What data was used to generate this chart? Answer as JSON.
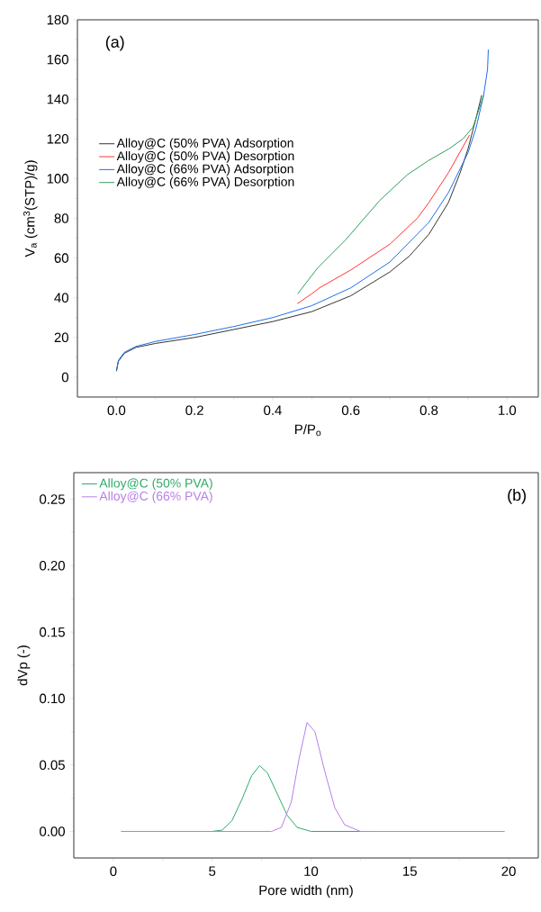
{
  "chart_data": [
    {
      "type": "line",
      "xlabel": "P/P$_{o}$",
      "ylabel": "V$_{a}$ (cm$^{3}$(STP)/g)",
      "annotations": [
        "(a)"
      ],
      "legend": "left",
      "xlim": [
        -0.1,
        1.08
      ],
      "ylim": [
        -10,
        180
      ],
      "xticks": [
        {
          "value": 0,
          "label": "0.0"
        },
        {
          "value": 0.2,
          "label": "0.2"
        },
        {
          "value": 0.4,
          "label": "0.4"
        },
        {
          "value": 0.6,
          "label": "0.6"
        },
        {
          "value": 0.8,
          "label": "0.8"
        },
        {
          "value": 1,
          "label": "1.0"
        }
      ],
      "yticks": [
        0,
        20,
        40,
        60,
        80,
        100,
        120,
        140,
        160,
        180
      ],
      "series": [
        {
          "name": "Alloy@C (50% PVA) Adsorption",
          "color": "#333333",
          "x": [
            0,
            0.005,
            0.02,
            0.05,
            0.1,
            0.2,
            0.3,
            0.4,
            0.5,
            0.6,
            0.7,
            0.75,
            0.8,
            0.85,
            0.88,
            0.9,
            0.92,
            0.935
          ],
          "values": [
            3,
            8,
            12,
            15,
            17,
            20,
            24,
            28,
            33,
            41,
            53,
            61,
            72,
            88,
            103,
            115,
            130,
            142
          ]
        },
        {
          "name": "Alloy@C (50% PVA) Desorption",
          "color": "#ff3333",
          "x": [
            0.463,
            0.5,
            0.52,
            0.6,
            0.7,
            0.77,
            0.8,
            0.85,
            0.904
          ],
          "values": [
            37,
            42,
            45,
            54,
            67,
            80,
            88,
            103,
            122
          ]
        },
        {
          "name": "Alloy@C (66% PVA) Adsorption",
          "color": "#1f6fe8",
          "x": [
            0,
            0.005,
            0.02,
            0.05,
            0.1,
            0.2,
            0.3,
            0.4,
            0.5,
            0.6,
            0.7,
            0.8,
            0.85,
            0.9,
            0.92,
            0.94,
            0.95,
            0.952
          ],
          "values": [
            3.5,
            8.5,
            12.5,
            15.5,
            18,
            21.5,
            25.5,
            30,
            36,
            45,
            58,
            78,
            93,
            113,
            125,
            142,
            155,
            165
          ]
        },
        {
          "name": "Alloy@C (66% PVA) Desorption",
          "color": "#2ca05a",
          "x": [
            0.464,
            0.515,
            0.586,
            0.674,
            0.745,
            0.798,
            0.851,
            0.887,
            0.913,
            0.94
          ],
          "values": [
            42,
            55,
            69,
            89,
            102,
            109,
            115,
            120,
            126,
            142
          ]
        }
      ]
    },
    {
      "type": "line",
      "xlabel": "Pore width (nm)",
      "ylabel": "dVp (-)",
      "annotations": [
        "(b)"
      ],
      "legend": "top left",
      "xlim": [
        -2,
        21.5
      ],
      "ylim": [
        -0.02,
        0.27
      ],
      "xticks": [
        0,
        5,
        10,
        15,
        20
      ],
      "yticks": [
        {
          "value": 0,
          "label": "0.00"
        },
        {
          "value": 0.05,
          "label": "0.05"
        },
        {
          "value": 0.1,
          "label": "0.10"
        },
        {
          "value": 0.15,
          "label": "0.15"
        },
        {
          "value": 0.2,
          "label": "0.20"
        },
        {
          "value": 0.25,
          "label": "0.25"
        }
      ],
      "series": [
        {
          "name": "Alloy@C (50% PVA)",
          "color": "#2eaa6a",
          "x": [
            0.4,
            5,
            5.5,
            6,
            6.5,
            7,
            7.4,
            7.8,
            8.3,
            8.8,
            9.3,
            10,
            13
          ],
          "values": [
            0,
            0,
            0.001,
            0.008,
            0.024,
            0.042,
            0.0495,
            0.044,
            0.028,
            0.012,
            0.003,
            0,
            0
          ]
        },
        {
          "name": "Alloy@C (66% PVA)",
          "color": "#b67ee8",
          "x": [
            0.4,
            8,
            8.5,
            9,
            9.4,
            9.8,
            10.2,
            10.7,
            11.2,
            11.7,
            12.5,
            19.8
          ],
          "values": [
            0,
            0,
            0.003,
            0.022,
            0.055,
            0.082,
            0.075,
            0.045,
            0.018,
            0.005,
            0,
            0
          ]
        }
      ]
    }
  ]
}
